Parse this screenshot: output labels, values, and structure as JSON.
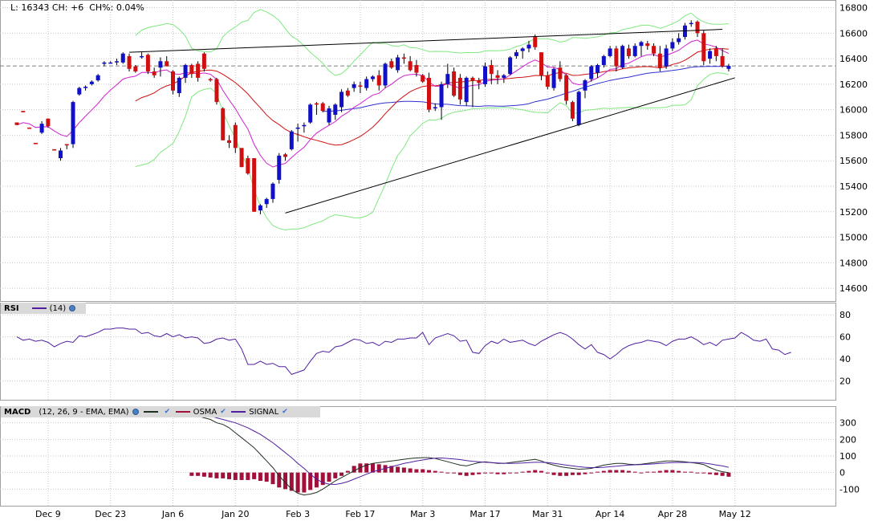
{
  "header": {
    "last_label": "L:",
    "last_value": "16343",
    "change_label": "CH:",
    "change_value": "+6",
    "change_pct_label": "CH%:",
    "change_pct_value": "0.04%"
  },
  "rsi_header": {
    "name": "RSI",
    "period": "(14)"
  },
  "macd_header": {
    "name": "MACD",
    "params": "(12, 26, 9 - EMA, EMA)",
    "osma_label": "OSMA",
    "signal_label": "SIGNAL"
  },
  "colors": {
    "up_candle": "#1010c8",
    "down_candle": "#d01010",
    "sma20": "#d01010",
    "ema10": "#d020d0",
    "sma50": "#3030d0",
    "bollinger": "#80e880",
    "rsi_line": "#5020a0",
    "macd_line": "#203020",
    "signal_line": "#5020a0",
    "osma_bar": "#a0103a",
    "grid": "#c8c8c8",
    "trendline": "#000000"
  },
  "chart_data": [
    {
      "type": "candlestick",
      "title": "",
      "price_ticks": [
        14600,
        14800,
        15000,
        15200,
        15400,
        15600,
        15800,
        16000,
        16200,
        16400,
        16600,
        16800
      ],
      "ylim": [
        14500,
        16860
      ],
      "x_labels": [
        "Dec 9",
        "Dec 23",
        "Jan 6",
        "Jan 20",
        "Feb 3",
        "Feb 17",
        "Mar 3",
        "Mar 17",
        "Mar 31",
        "Apr 14",
        "Apr 28",
        "May 12"
      ],
      "x_label_index": [
        5,
        15,
        25,
        35,
        45,
        55,
        65,
        75,
        85,
        95,
        105,
        115
      ],
      "reference_line": 16343,
      "candles": [
        [
          15900,
          15900,
          15880,
          15880
        ],
        [
          15990,
          15990,
          15980,
          15980
        ],
        [
          15860,
          15860,
          15850,
          15850
        ],
        [
          15740,
          15740,
          15730,
          15730
        ],
        [
          15820,
          15910,
          15810,
          15890
        ],
        [
          15930,
          15930,
          15860,
          15870
        ],
        [
          15690,
          15690,
          15680,
          15680
        ],
        [
          15620,
          15700,
          15600,
          15680
        ],
        [
          15730,
          15730,
          15690,
          15720
        ],
        [
          15730,
          16070,
          15700,
          16060
        ],
        [
          16120,
          16180,
          16110,
          16170
        ],
        [
          16170,
          16190,
          16150,
          16180
        ],
        [
          16200,
          16230,
          16190,
          16220
        ],
        [
          16230,
          16280,
          16220,
          16270
        ],
        [
          16360,
          16380,
          16340,
          16370
        ],
        [
          16370,
          16380,
          16360,
          16370
        ],
        [
          16380,
          16400,
          16350,
          16380
        ],
        [
          16370,
          16450,
          16360,
          16440
        ],
        [
          16420,
          16440,
          16300,
          16320
        ],
        [
          16340,
          16350,
          16290,
          16300
        ],
        [
          16420,
          16450,
          16400,
          16420
        ],
        [
          16430,
          16440,
          16280,
          16300
        ],
        [
          16300,
          16330,
          16250,
          16270
        ],
        [
          16330,
          16410,
          16260,
          16380
        ],
        [
          16380,
          16420,
          16340,
          16340
        ],
        [
          16300,
          16310,
          16120,
          16150
        ],
        [
          16130,
          16260,
          16100,
          16250
        ],
        [
          16250,
          16360,
          16210,
          16350
        ],
        [
          16350,
          16360,
          16250,
          16280
        ],
        [
          16360,
          16380,
          16220,
          16250
        ],
        [
          16440,
          16450,
          16300,
          16320
        ],
        [
          16240,
          16250,
          16220,
          16230
        ],
        [
          16240,
          16250,
          16040,
          16060
        ],
        [
          16010,
          16020,
          15760,
          15760
        ],
        [
          15760,
          15800,
          15700,
          15740
        ],
        [
          15880,
          15900,
          15660,
          15700
        ],
        [
          15700,
          15700,
          15550,
          15550
        ],
        [
          15620,
          15640,
          15490,
          15500
        ],
        [
          15620,
          15620,
          15200,
          15200
        ],
        [
          15210,
          15260,
          15180,
          15250
        ],
        [
          15260,
          15310,
          15230,
          15300
        ],
        [
          15300,
          15430,
          15270,
          15420
        ],
        [
          15450,
          15660,
          15420,
          15640
        ],
        [
          15650,
          15660,
          15600,
          15630
        ],
        [
          15690,
          15840,
          15680,
          15830
        ],
        [
          15850,
          15890,
          15750,
          15860
        ],
        [
          15870,
          15900,
          15820,
          15880
        ],
        [
          15900,
          16050,
          15890,
          16040
        ],
        [
          16050,
          16060,
          15960,
          16040
        ],
        [
          16050,
          16060,
          15980,
          15990
        ],
        [
          15900,
          16030,
          15880,
          16010
        ],
        [
          15960,
          16050,
          15920,
          16040
        ],
        [
          16020,
          16160,
          15980,
          16140
        ],
        [
          16150,
          16170,
          16100,
          16110
        ],
        [
          16170,
          16220,
          16140,
          16200
        ],
        [
          16190,
          16220,
          16130,
          16180
        ],
        [
          16170,
          16260,
          16150,
          16240
        ],
        [
          16240,
          16270,
          16220,
          16260
        ],
        [
          16270,
          16310,
          16150,
          16190
        ],
        [
          16190,
          16370,
          16170,
          16360
        ],
        [
          16380,
          16400,
          16320,
          16330
        ],
        [
          16310,
          16430,
          16290,
          16410
        ],
        [
          16410,
          16440,
          16360,
          16400
        ],
        [
          16380,
          16420,
          16300,
          16310
        ],
        [
          16350,
          16390,
          16260,
          16290
        ],
        [
          16270,
          16280,
          16210,
          16220
        ],
        [
          16250,
          16290,
          15980,
          16000
        ],
        [
          16010,
          16050,
          15990,
          16020
        ],
        [
          16020,
          16220,
          15920,
          16200
        ],
        [
          16200,
          16360,
          16170,
          16280
        ],
        [
          16300,
          16330,
          16100,
          16110
        ],
        [
          16250,
          16280,
          16040,
          16080
        ],
        [
          16060,
          16260,
          16030,
          16250
        ],
        [
          16250,
          16260,
          16020,
          16230
        ],
        [
          16230,
          16250,
          16160,
          16210
        ],
        [
          16200,
          16370,
          16180,
          16340
        ],
        [
          16350,
          16390,
          16200,
          16280
        ],
        [
          16270,
          16310,
          16200,
          16250
        ],
        [
          16250,
          16280,
          16210,
          16270
        ],
        [
          16280,
          16420,
          16270,
          16410
        ],
        [
          16420,
          16470,
          16400,
          16450
        ],
        [
          16460,
          16490,
          16400,
          16480
        ],
        [
          16480,
          16540,
          16450,
          16510
        ],
        [
          16570,
          16590,
          16470,
          16490
        ],
        [
          16450,
          16450,
          16230,
          16270
        ],
        [
          16270,
          16300,
          16160,
          16180
        ],
        [
          16170,
          16330,
          16150,
          16320
        ],
        [
          16330,
          16380,
          16220,
          16240
        ],
        [
          16270,
          16280,
          16040,
          16070
        ],
        [
          16060,
          16070,
          15910,
          15930
        ],
        [
          15880,
          16150,
          15870,
          16140
        ],
        [
          16150,
          16240,
          16090,
          16230
        ],
        [
          16240,
          16350,
          16220,
          16340
        ],
        [
          16290,
          16360,
          16250,
          16350
        ],
        [
          16350,
          16430,
          16330,
          16420
        ],
        [
          16420,
          16500,
          16410,
          16480
        ],
        [
          16480,
          16500,
          16300,
          16340
        ],
        [
          16330,
          16510,
          16320,
          16500
        ],
        [
          16480,
          16510,
          16400,
          16420
        ],
        [
          16420,
          16520,
          16410,
          16500
        ],
        [
          16500,
          16540,
          16420,
          16530
        ],
        [
          16520,
          16540,
          16470,
          16500
        ],
        [
          16500,
          16520,
          16420,
          16440
        ],
        [
          16440,
          16500,
          16300,
          16330
        ],
        [
          16340,
          16510,
          16320,
          16480
        ],
        [
          16480,
          16560,
          16460,
          16530
        ],
        [
          16530,
          16600,
          16510,
          16560
        ],
        [
          16570,
          16680,
          16550,
          16660
        ],
        [
          16680,
          16700,
          16650,
          16680
        ],
        [
          16690,
          16700,
          16570,
          16600
        ],
        [
          16600,
          16620,
          16350,
          16380
        ],
        [
          16400,
          16480,
          16360,
          16460
        ],
        [
          16480,
          16500,
          16380,
          16420
        ],
        [
          16420,
          16480,
          16330,
          16340
        ],
        [
          16320,
          16360,
          16300,
          16343
        ]
      ]
    },
    {
      "type": "line",
      "title": "",
      "series_name": "RSI",
      "y_ticks": [
        20,
        40,
        60,
        80
      ],
      "ylim": [
        3,
        91
      ],
      "values": [
        60,
        57,
        58,
        56,
        57,
        55,
        51,
        54,
        56,
        55,
        61,
        60,
        62,
        64,
        67,
        67,
        68,
        68,
        67,
        67,
        63,
        64,
        61,
        60,
        63,
        60,
        62,
        59,
        60,
        59,
        54,
        55,
        58,
        59,
        57,
        58,
        49,
        35,
        35,
        38,
        35,
        36,
        33,
        33,
        26,
        28,
        30,
        38,
        45,
        47,
        46,
        51,
        52,
        55,
        58,
        57,
        54,
        55,
        52,
        56,
        55,
        58,
        58,
        59,
        59,
        64,
        53,
        59,
        61,
        63,
        61,
        56,
        57,
        46,
        45,
        52,
        56,
        54,
        58,
        55,
        56,
        57,
        54,
        52,
        56,
        59,
        62,
        64,
        62,
        58,
        53,
        49,
        53,
        46,
        44,
        40,
        44,
        49,
        52,
        54,
        55,
        57,
        56,
        55,
        52,
        56,
        58,
        58,
        60,
        57,
        53,
        55,
        52,
        57,
        58,
        59,
        64,
        61,
        57,
        56,
        58,
        49,
        48,
        44,
        46
      ]
    },
    {
      "type": "line",
      "title": "",
      "y_ticks": [
        -100,
        0,
        100,
        200,
        300
      ],
      "ylim": [
        -200,
        400
      ],
      "series": [
        {
          "name": "MACD",
          "values": [
            350,
            340,
            330,
            320,
            300,
            290,
            270,
            240,
            210,
            180,
            150,
            110,
            70,
            30,
            -20,
            -60,
            -100,
            -125,
            -135,
            -130,
            -120,
            -100,
            -75,
            -50,
            -30,
            -10,
            10,
            30,
            45,
            55,
            60,
            65,
            70,
            75,
            80,
            85,
            88,
            90,
            90,
            85,
            75,
            65,
            55,
            45,
            40,
            50,
            60,
            65,
            60,
            55,
            55,
            60,
            65,
            70,
            75,
            80,
            70,
            55,
            45,
            35,
            30,
            25,
            20,
            22,
            25,
            35,
            45,
            50,
            55,
            55,
            50,
            48,
            50,
            55,
            60,
            65,
            70,
            70,
            68,
            65,
            60,
            55,
            48,
            30,
            15,
            5,
            0
          ]
        },
        {
          "name": "SIGNAL",
          "values": [
            370,
            360,
            350,
            340,
            330,
            320,
            310,
            300,
            285,
            270,
            250,
            230,
            205,
            180,
            150,
            120,
            90,
            55,
            25,
            -10,
            -40,
            -60,
            -70,
            -72,
            -65,
            -55,
            -40,
            -25,
            -10,
            5,
            15,
            25,
            35,
            45,
            55,
            62,
            70,
            76,
            82,
            87,
            88,
            85,
            82,
            78,
            72,
            68,
            65,
            62,
            60,
            58,
            56,
            55,
            56,
            58,
            60,
            62,
            62,
            60,
            56,
            50,
            45,
            40,
            35,
            32,
            30,
            30,
            32,
            35,
            38,
            42,
            45,
            47,
            48,
            50,
            52,
            55,
            58,
            60,
            61,
            61,
            61,
            60,
            58,
            52,
            46,
            40,
            32
          ]
        }
      ],
      "osma_values": [
        -20,
        -20,
        -25,
        -30,
        -35,
        -35,
        -40,
        -45,
        -45,
        -45,
        -40,
        -50,
        -55,
        -70,
        -90,
        -100,
        -110,
        -120,
        -120,
        -105,
        -90,
        -75,
        -55,
        -35,
        -20,
        10,
        40,
        55,
        55,
        55,
        50,
        45,
        40,
        35,
        30,
        25,
        20,
        20,
        15,
        10,
        5,
        0,
        -5,
        -15,
        -20,
        -15,
        -10,
        -5,
        -5,
        -10,
        -10,
        -5,
        0,
        5,
        10,
        15,
        10,
        -5,
        -15,
        -20,
        -20,
        -15,
        -15,
        -10,
        -5,
        5,
        10,
        15,
        15,
        15,
        10,
        5,
        0,
        5,
        5,
        10,
        15,
        15,
        10,
        5,
        5,
        0,
        -5,
        -10,
        -15,
        -20,
        -25
      ]
    }
  ]
}
